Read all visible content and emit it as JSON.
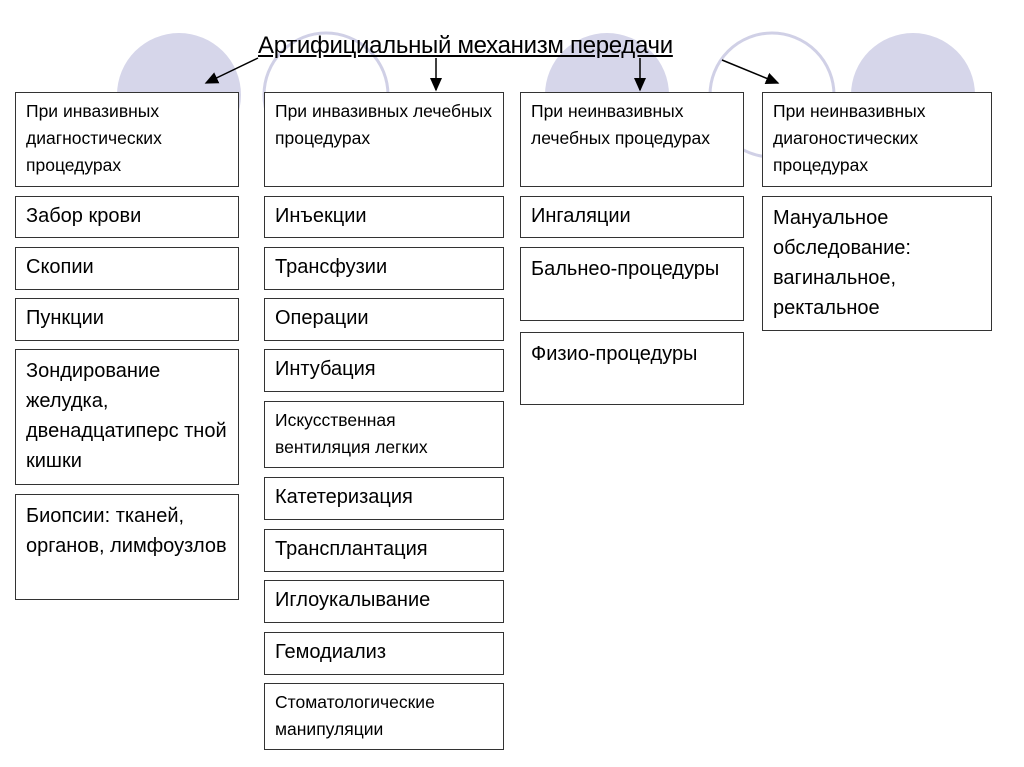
{
  "title": "Артифициальный механизм передачи",
  "colors": {
    "circle_fill": "#d6d6ea",
    "circle_outline": "#d0d0e6",
    "border": "#333333"
  },
  "columns": [
    {
      "header": "При инвазивных диагностических процедурах",
      "items": [
        "Забор крови",
        "Скопии",
        "Пункции",
        "Зондирование желудка, двенадцатиперс тной кишки",
        "Биопсии: тканей, органов, лимфоузлов"
      ]
    },
    {
      "header": "При инвазивных лечебных процедурах",
      "items": [
        "Инъекции",
        "Трансфузии",
        "Операции",
        "Интубация",
        "Искусственная вентиляция легких",
        "Катетеризация",
        "Трансплантация",
        "Иглоукалывание",
        "Гемодиализ",
        "Стоматологические манипуляции"
      ]
    },
    {
      "header": "При неинвазивных лечебных процедурах",
      "items": [
        "Ингаляции",
        "Бальнео-процедуры",
        "Физио-процедуры"
      ]
    },
    {
      "header": "При неинвазивных диагоностических процедурах",
      "items": [
        "Мануальное обследование: вагинальное, ректальное"
      ]
    }
  ]
}
